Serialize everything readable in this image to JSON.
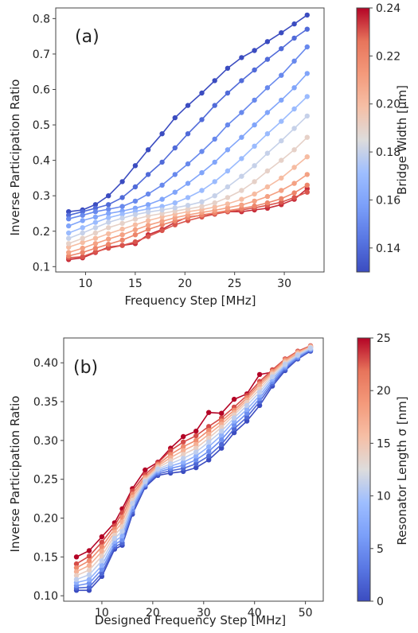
{
  "chart_data": [
    {
      "type": "line",
      "panel_label": "(a)",
      "xlabel": "Frequency Step [MHz]",
      "ylabel": "Inverse Participation Ratio",
      "xlim": [
        7,
        34
      ],
      "ylim": [
        0.085,
        0.83
      ],
      "xticks": [
        10,
        15,
        20,
        25,
        30
      ],
      "yticks": [
        0.1,
        0.2,
        0.3,
        0.4,
        0.5,
        0.6,
        0.7,
        0.8
      ],
      "x": [
        8.3,
        9.7,
        11.0,
        12.3,
        13.7,
        15.0,
        16.3,
        17.7,
        19.0,
        20.3,
        21.7,
        23.0,
        24.3,
        25.7,
        27.0,
        28.3,
        29.7,
        31.0,
        32.3
      ],
      "colorbar": {
        "label": "Bridge Width [μm]",
        "min": 0.13,
        "max": 0.24,
        "ticks": [
          "0.14",
          "0.16",
          "0.18",
          "0.20",
          "0.22",
          "0.24"
        ],
        "tick_values": [
          0.14,
          0.16,
          0.18,
          0.2,
          0.22,
          0.24
        ],
        "colormap": "coolwarm"
      },
      "series": [
        {
          "param": 0.13,
          "values": [
            0.255,
            0.26,
            0.275,
            0.3,
            0.34,
            0.385,
            0.43,
            0.475,
            0.52,
            0.555,
            0.59,
            0.625,
            0.66,
            0.69,
            0.71,
            0.735,
            0.76,
            0.785,
            0.81
          ]
        },
        {
          "param": 0.14,
          "values": [
            0.245,
            0.255,
            0.265,
            0.275,
            0.295,
            0.325,
            0.36,
            0.395,
            0.435,
            0.475,
            0.515,
            0.555,
            0.59,
            0.625,
            0.655,
            0.685,
            0.715,
            0.745,
            0.77
          ]
        },
        {
          "param": 0.15,
          "values": [
            0.235,
            0.245,
            0.255,
            0.262,
            0.27,
            0.285,
            0.305,
            0.33,
            0.36,
            0.39,
            0.425,
            0.46,
            0.5,
            0.535,
            0.57,
            0.605,
            0.64,
            0.68,
            0.72
          ]
        },
        {
          "param": 0.16,
          "values": [
            0.215,
            0.23,
            0.24,
            0.25,
            0.257,
            0.265,
            0.275,
            0.29,
            0.31,
            0.335,
            0.365,
            0.395,
            0.43,
            0.465,
            0.5,
            0.535,
            0.57,
            0.605,
            0.645
          ]
        },
        {
          "param": 0.17,
          "values": [
            0.195,
            0.21,
            0.225,
            0.238,
            0.248,
            0.256,
            0.263,
            0.27,
            0.28,
            0.295,
            0.315,
            0.34,
            0.37,
            0.405,
            0.44,
            0.475,
            0.51,
            0.545,
            0.58
          ]
        },
        {
          "param": 0.18,
          "values": [
            0.18,
            0.195,
            0.21,
            0.225,
            0.237,
            0.247,
            0.254,
            0.26,
            0.266,
            0.273,
            0.283,
            0.3,
            0.325,
            0.355,
            0.385,
            0.42,
            0.455,
            0.49,
            0.525
          ]
        },
        {
          "param": 0.19,
          "values": [
            0.165,
            0.18,
            0.195,
            0.21,
            0.222,
            0.234,
            0.243,
            0.25,
            0.257,
            0.263,
            0.27,
            0.28,
            0.295,
            0.315,
            0.34,
            0.37,
            0.4,
            0.43,
            0.465
          ]
        },
        {
          "param": 0.2,
          "values": [
            0.155,
            0.168,
            0.18,
            0.193,
            0.206,
            0.218,
            0.23,
            0.24,
            0.248,
            0.255,
            0.261,
            0.268,
            0.277,
            0.29,
            0.305,
            0.325,
            0.35,
            0.38,
            0.41
          ]
        },
        {
          "param": 0.21,
          "values": [
            0.14,
            0.152,
            0.165,
            0.178,
            0.19,
            0.204,
            0.217,
            0.228,
            0.238,
            0.246,
            0.253,
            0.259,
            0.266,
            0.274,
            0.285,
            0.298,
            0.315,
            0.335,
            0.36
          ]
        },
        {
          "param": 0.22,
          "values": [
            0.13,
            0.14,
            0.152,
            0.163,
            0.175,
            0.19,
            0.205,
            0.218,
            0.229,
            0.238,
            0.246,
            0.252,
            0.258,
            0.264,
            0.271,
            0.28,
            0.292,
            0.308,
            0.33
          ]
        },
        {
          "param": 0.23,
          "values": [
            0.125,
            0.128,
            0.142,
            0.152,
            0.16,
            0.17,
            0.185,
            0.202,
            0.218,
            0.23,
            0.24,
            0.248,
            0.255,
            0.26,
            0.266,
            0.273,
            0.282,
            0.295,
            0.31
          ]
        },
        {
          "param": 0.235,
          "values": [
            0.12,
            0.125,
            0.14,
            0.155,
            0.16,
            0.165,
            0.19,
            0.205,
            0.225,
            0.24,
            0.245,
            0.25,
            0.255,
            0.255,
            0.26,
            0.265,
            0.275,
            0.29,
            0.32
          ]
        }
      ]
    },
    {
      "type": "line",
      "panel_label": "(b)",
      "xlabel": "Designed Frequency Step [MHz]",
      "ylabel": "Inverse Participation Ratio",
      "xlim": [
        2.5,
        53.5
      ],
      "ylim": [
        0.093,
        0.432
      ],
      "xticks": [
        10,
        20,
        30,
        40,
        50
      ],
      "yticks": [
        0.1,
        0.15,
        0.2,
        0.25,
        0.3,
        0.35,
        0.4
      ],
      "ytick_labels": [
        "0.10",
        "0.15",
        "0.20",
        "0.25",
        "0.30",
        "0.35",
        "0.40"
      ],
      "x": [
        5,
        7.5,
        10,
        12.5,
        14,
        16,
        18.5,
        21,
        23.5,
        26,
        28.5,
        31,
        33.5,
        36,
        38.5,
        41,
        43.5,
        46,
        48.5,
        51
      ],
      "colorbar": {
        "label": "Resonator Length σ [nm]",
        "min": 0,
        "max": 25,
        "ticks": [
          "0",
          "5",
          "10",
          "15",
          "20",
          "25"
        ],
        "tick_values": [
          0,
          5,
          10,
          15,
          20,
          25
        ],
        "colormap": "coolwarm"
      },
      "series": [
        {
          "param": 0,
          "values": [
            0.107,
            0.107,
            0.125,
            0.16,
            0.165,
            0.205,
            0.24,
            0.255,
            0.258,
            0.26,
            0.265,
            0.275,
            0.29,
            0.31,
            0.325,
            0.345,
            0.37,
            0.39,
            0.405,
            0.415
          ]
        },
        {
          "param": 2,
          "values": [
            0.11,
            0.111,
            0.129,
            0.163,
            0.168,
            0.208,
            0.242,
            0.257,
            0.261,
            0.264,
            0.27,
            0.28,
            0.295,
            0.315,
            0.33,
            0.35,
            0.373,
            0.392,
            0.406,
            0.416
          ]
        },
        {
          "param": 5,
          "values": [
            0.113,
            0.116,
            0.134,
            0.166,
            0.172,
            0.211,
            0.243,
            0.259,
            0.264,
            0.268,
            0.275,
            0.286,
            0.301,
            0.32,
            0.335,
            0.354,
            0.376,
            0.394,
            0.407,
            0.417
          ]
        },
        {
          "param": 8,
          "values": [
            0.117,
            0.121,
            0.139,
            0.17,
            0.177,
            0.215,
            0.245,
            0.261,
            0.267,
            0.272,
            0.28,
            0.292,
            0.307,
            0.325,
            0.34,
            0.358,
            0.379,
            0.396,
            0.409,
            0.418
          ]
        },
        {
          "param": 11,
          "values": [
            0.121,
            0.127,
            0.145,
            0.174,
            0.183,
            0.219,
            0.247,
            0.263,
            0.27,
            0.277,
            0.285,
            0.298,
            0.312,
            0.329,
            0.345,
            0.362,
            0.382,
            0.398,
            0.41,
            0.419
          ]
        },
        {
          "param": 14,
          "values": [
            0.126,
            0.133,
            0.151,
            0.178,
            0.189,
            0.223,
            0.249,
            0.265,
            0.274,
            0.282,
            0.29,
            0.303,
            0.317,
            0.333,
            0.349,
            0.366,
            0.385,
            0.4,
            0.411,
            0.42
          ]
        },
        {
          "param": 17,
          "values": [
            0.131,
            0.139,
            0.157,
            0.182,
            0.195,
            0.227,
            0.251,
            0.267,
            0.278,
            0.287,
            0.295,
            0.308,
            0.321,
            0.336,
            0.352,
            0.37,
            0.387,
            0.402,
            0.413,
            0.421
          ]
        },
        {
          "param": 20,
          "values": [
            0.136,
            0.145,
            0.163,
            0.186,
            0.201,
            0.231,
            0.253,
            0.269,
            0.282,
            0.292,
            0.3,
            0.313,
            0.325,
            0.339,
            0.355,
            0.373,
            0.389,
            0.404,
            0.414,
            0.421
          ]
        },
        {
          "param": 23,
          "values": [
            0.141,
            0.151,
            0.169,
            0.19,
            0.207,
            0.235,
            0.256,
            0.271,
            0.287,
            0.298,
            0.306,
            0.318,
            0.329,
            0.343,
            0.358,
            0.376,
            0.391,
            0.405,
            0.415,
            0.422
          ]
        },
        {
          "param": 25,
          "values": [
            0.15,
            0.158,
            0.176,
            0.194,
            0.212,
            0.238,
            0.262,
            0.272,
            0.29,
            0.305,
            0.312,
            0.336,
            0.335,
            0.353,
            0.36,
            0.385,
            0.388,
            0.405,
            0.41,
            0.42
          ]
        }
      ]
    }
  ]
}
